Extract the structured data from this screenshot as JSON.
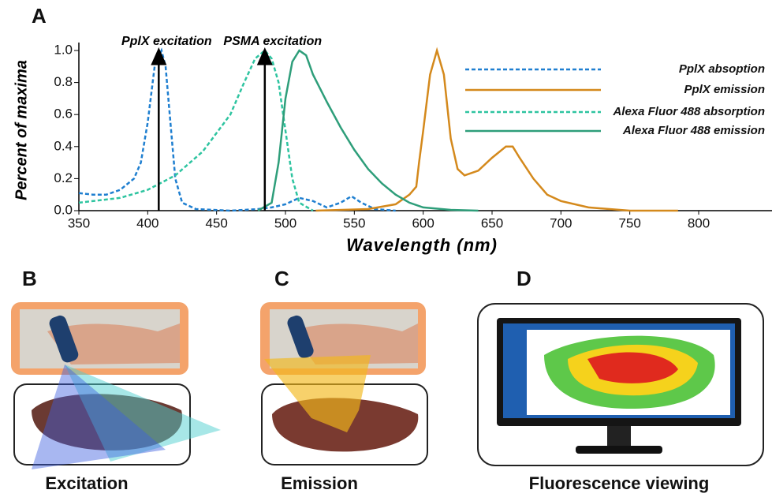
{
  "chart_data": {
    "type": "line",
    "panel_label": "A",
    "xlabel": "Wavelength (nm)",
    "ylabel": "Percent of maxima",
    "xlim": [
      350,
      850
    ],
    "ylim": [
      0,
      1.05
    ],
    "xticks": [
      350,
      400,
      450,
      500,
      550,
      600,
      650,
      700,
      750,
      800
    ],
    "yticks": [
      {
        "value": 0,
        "label": "0.0"
      },
      {
        "value": 0.2,
        "label": "0.2"
      },
      {
        "value": 0.4,
        "label": "0.4"
      },
      {
        "value": 0.6,
        "label": "0.6"
      },
      {
        "value": 0.8,
        "label": "0.8"
      },
      {
        "value": 1,
        "label": "1.0"
      }
    ],
    "legend": "upper right",
    "series": [
      {
        "name": "PplX absoption",
        "color": "#1f7fd0",
        "dash": true,
        "x": [
          350,
          360,
          370,
          380,
          390,
          395,
          400,
          405,
          410,
          413,
          417,
          420,
          425,
          435,
          460,
          480,
          490,
          500,
          510,
          520,
          530,
          540,
          548,
          555,
          565,
          580
        ],
        "values": [
          0.11,
          0.1,
          0.1,
          0.13,
          0.2,
          0.3,
          0.55,
          0.9,
          1.0,
          0.9,
          0.5,
          0.2,
          0.05,
          0.01,
          0.0,
          0.01,
          0.02,
          0.04,
          0.08,
          0.06,
          0.02,
          0.05,
          0.09,
          0.05,
          0.01,
          0.0
        ]
      },
      {
        "name": "PplX emission",
        "color": "#d4891c",
        "dash": false,
        "x": [
          522,
          560,
          580,
          590,
          595,
          597,
          600,
          605,
          610,
          615,
          620,
          625,
          630,
          640,
          650,
          660,
          665,
          670,
          680,
          690,
          700,
          720,
          750,
          785
        ],
        "values": [
          0,
          0.01,
          0.04,
          0.1,
          0.15,
          0.3,
          0.5,
          0.85,
          1.0,
          0.85,
          0.45,
          0.26,
          0.22,
          0.25,
          0.33,
          0.4,
          0.4,
          0.33,
          0.2,
          0.1,
          0.06,
          0.02,
          0.0,
          0.0
        ]
      },
      {
        "name": "Alexa Fluor 488 absorption",
        "color": "#2ec4a0",
        "dash": true,
        "x": [
          350,
          380,
          400,
          420,
          440,
          460,
          470,
          478,
          485,
          490,
          495,
          500,
          505,
          510,
          520
        ],
        "values": [
          0.05,
          0.08,
          0.13,
          0.22,
          0.37,
          0.6,
          0.8,
          0.95,
          1.0,
          0.95,
          0.8,
          0.5,
          0.2,
          0.05,
          0.0
        ]
      },
      {
        "name": "Alexa Fluor 488 emission",
        "color": "#2e9e7a",
        "dash": false,
        "x": [
          480,
          490,
          495,
          500,
          505,
          510,
          515,
          520,
          530,
          540,
          550,
          560,
          570,
          580,
          590,
          600,
          620,
          640
        ],
        "values": [
          0,
          0.05,
          0.3,
          0.7,
          0.93,
          1.0,
          0.97,
          0.85,
          0.68,
          0.52,
          0.38,
          0.26,
          0.17,
          0.1,
          0.05,
          0.02,
          0.005,
          0.0
        ]
      }
    ],
    "annotations": [
      {
        "text": "PplX excitation",
        "x": 408,
        "y": 1.0
      },
      {
        "text": "PSMA excitation",
        "x": 485,
        "y": 1.0
      }
    ]
  },
  "panels": [
    {
      "label": "B",
      "caption": "Excitation"
    },
    {
      "label": "C",
      "caption": "Emission"
    },
    {
      "label": "D",
      "caption": "Fluorescence viewing"
    }
  ]
}
